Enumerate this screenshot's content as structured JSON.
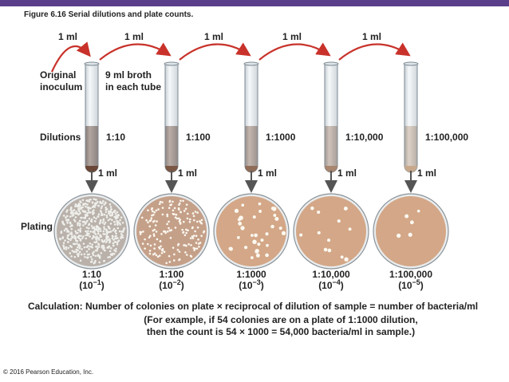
{
  "title": "Figure 6.16  Serial dilutions and plate counts.",
  "transfers": [
    "1 ml",
    "1 ml",
    "1 ml",
    "1 ml",
    "1 ml"
  ],
  "inoculum": [
    "Original",
    "inoculum"
  ],
  "broth": [
    "9 ml broth",
    "in each tube"
  ],
  "dilutions_label": "Dilutions",
  "plating_label": "Plating",
  "tubes": [
    {
      "dilution": "1:10",
      "transfer": "1 ml"
    },
    {
      "dilution": "1:100",
      "transfer": "1 ml"
    },
    {
      "dilution": "1:1000",
      "transfer": "1 ml"
    },
    {
      "dilution": "1:10,000",
      "transfer": "1 ml"
    },
    {
      "dilution": "1:100,000",
      "transfer": "1 ml"
    }
  ],
  "plates": [
    {
      "dilution": "1:10",
      "open": "(10",
      "exponent": "−1",
      "close": ")"
    },
    {
      "dilution": "1:100",
      "open": "(10",
      "exponent": "−2",
      "close": ")"
    },
    {
      "dilution": "1:1000",
      "open": "(10",
      "exponent": "−3",
      "close": ")"
    },
    {
      "dilution": "1:10,000",
      "open": "(10",
      "exponent": "−4",
      "close": ")"
    },
    {
      "dilution": "1:100,000",
      "open": "(10",
      "exponent": "−5",
      "close": ")"
    }
  ],
  "calculation": [
    "Calculation: Number of colonies on plate × reciprocal of dilution of sample = number of bacteria/ml",
    "(For example, if 54 colonies are on a plate of 1:1000 dilution,",
    "then the count is 54 × 1000 = 54,000 bacteria/ml in sample.)"
  ],
  "copyright": "© 2016 Pearson Education, Inc."
}
